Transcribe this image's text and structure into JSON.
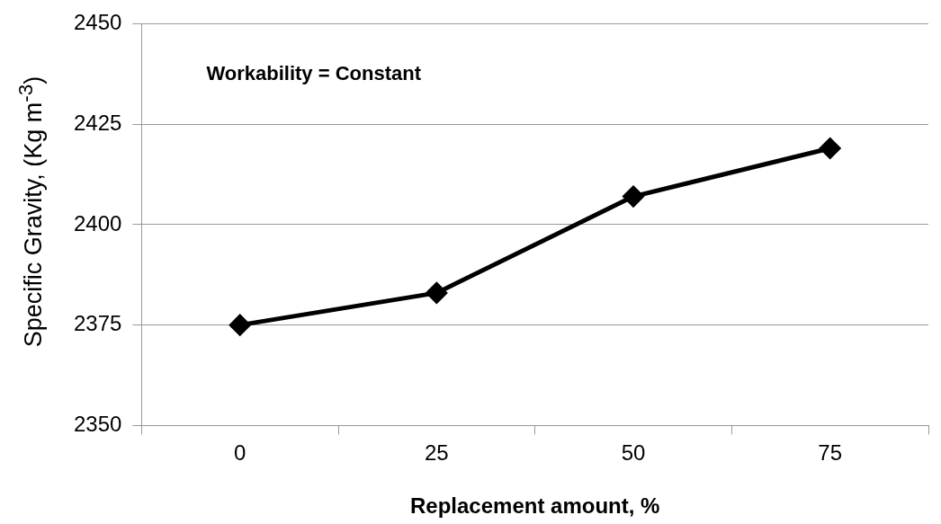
{
  "chart_data": {
    "type": "line",
    "xlabel": "Replacement amount, %",
    "ylabel": "Specific Gravity, (Kg m$^{-3}$)",
    "categories": [
      "0",
      "25",
      "50",
      "75"
    ],
    "series": [
      {
        "color": "#000000",
        "values": [
          2375,
          2383,
          2407,
          2419
        ]
      }
    ],
    "ylim": [
      2350,
      2450
    ],
    "yticks": [
      2350,
      2375,
      2400,
      2425,
      2450
    ],
    "grid": "y",
    "marker": "diamond",
    "line_style": "solid",
    "annotations": [
      "Workability = Constant"
    ]
  }
}
